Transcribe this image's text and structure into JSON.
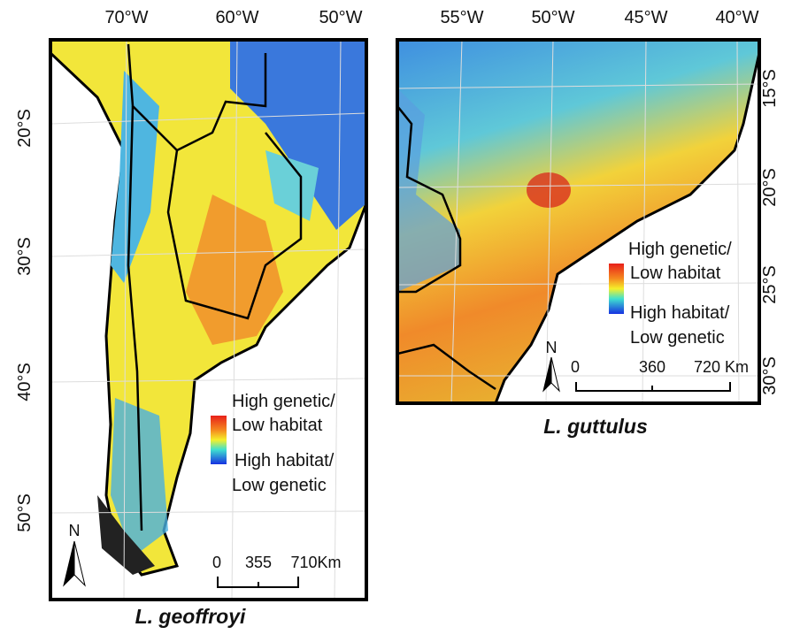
{
  "panels": [
    {
      "title": "L. geoffroyi",
      "top_labels": [
        "70°W",
        "60°W",
        "50°W"
      ],
      "side_labels": [
        "20°S",
        "30°S",
        "40°S",
        "50°S"
      ],
      "legend": [
        "High genetic/",
        "Low habitat",
        "High habitat/",
        "Low genetic"
      ],
      "scale": [
        "0",
        "355",
        "710Km"
      ],
      "north": "N"
    },
    {
      "title": "L. guttulus",
      "top_labels": [
        "55°W",
        "50°W",
        "45°W",
        "40°W"
      ],
      "side_labels": [
        "15°S",
        "20°S",
        "25°S",
        "30°S"
      ],
      "legend": [
        "High genetic/",
        "Low habitat",
        "High habitat/",
        "Low genetic"
      ],
      "scale": [
        "0",
        "360",
        "720 Km"
      ],
      "north": "N"
    }
  ]
}
